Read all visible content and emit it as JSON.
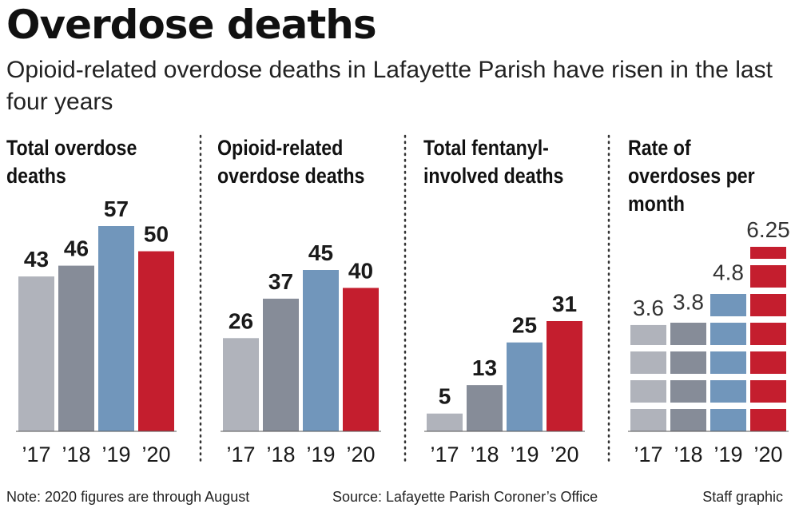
{
  "title": "Overdose deaths",
  "subtitle": "Opioid-related overdose deaths in Lafayette Parish have risen in the last four years",
  "colors": [
    "#b0b3bb",
    "#868c98",
    "#7196bb",
    "#c41e2e"
  ],
  "chart_data": [
    {
      "type": "bar",
      "title_lines": [
        "Total overdose",
        "deaths"
      ],
      "categories": [
        "’17",
        "’18",
        "’19",
        "’20"
      ],
      "values": [
        43,
        46,
        57,
        50
      ],
      "value_labels": [
        "43",
        "46",
        "57",
        "50"
      ]
    },
    {
      "type": "bar",
      "title_lines": [
        "Opioid-related",
        "overdose deaths"
      ],
      "categories": [
        "’17",
        "’18",
        "’19",
        "’20"
      ],
      "values": [
        26,
        37,
        45,
        40
      ],
      "value_labels": [
        "26",
        "37",
        "45",
        "40"
      ]
    },
    {
      "type": "bar",
      "title_lines": [
        "Total fentanyl-",
        "involved deaths"
      ],
      "categories": [
        "’17",
        "’18",
        "’19",
        "’20"
      ],
      "values": [
        5,
        13,
        25,
        31
      ],
      "value_labels": [
        "5",
        "13",
        "25",
        "31"
      ]
    },
    {
      "type": "bar",
      "segmented": true,
      "title_lines": [
        "Rate of",
        "overdoses per",
        "month"
      ],
      "categories": [
        "’17",
        "’18",
        "’19",
        "’20"
      ],
      "values": [
        3.6,
        3.8,
        4.8,
        6.25
      ],
      "value_labels": [
        "3.6",
        "3.8",
        "4.8",
        "6.25"
      ]
    }
  ],
  "footer": {
    "note": "Note: 2020 figures are through August",
    "source": "Source: Lafayette Parish Coroner’s Office",
    "credit": "Staff graphic"
  }
}
